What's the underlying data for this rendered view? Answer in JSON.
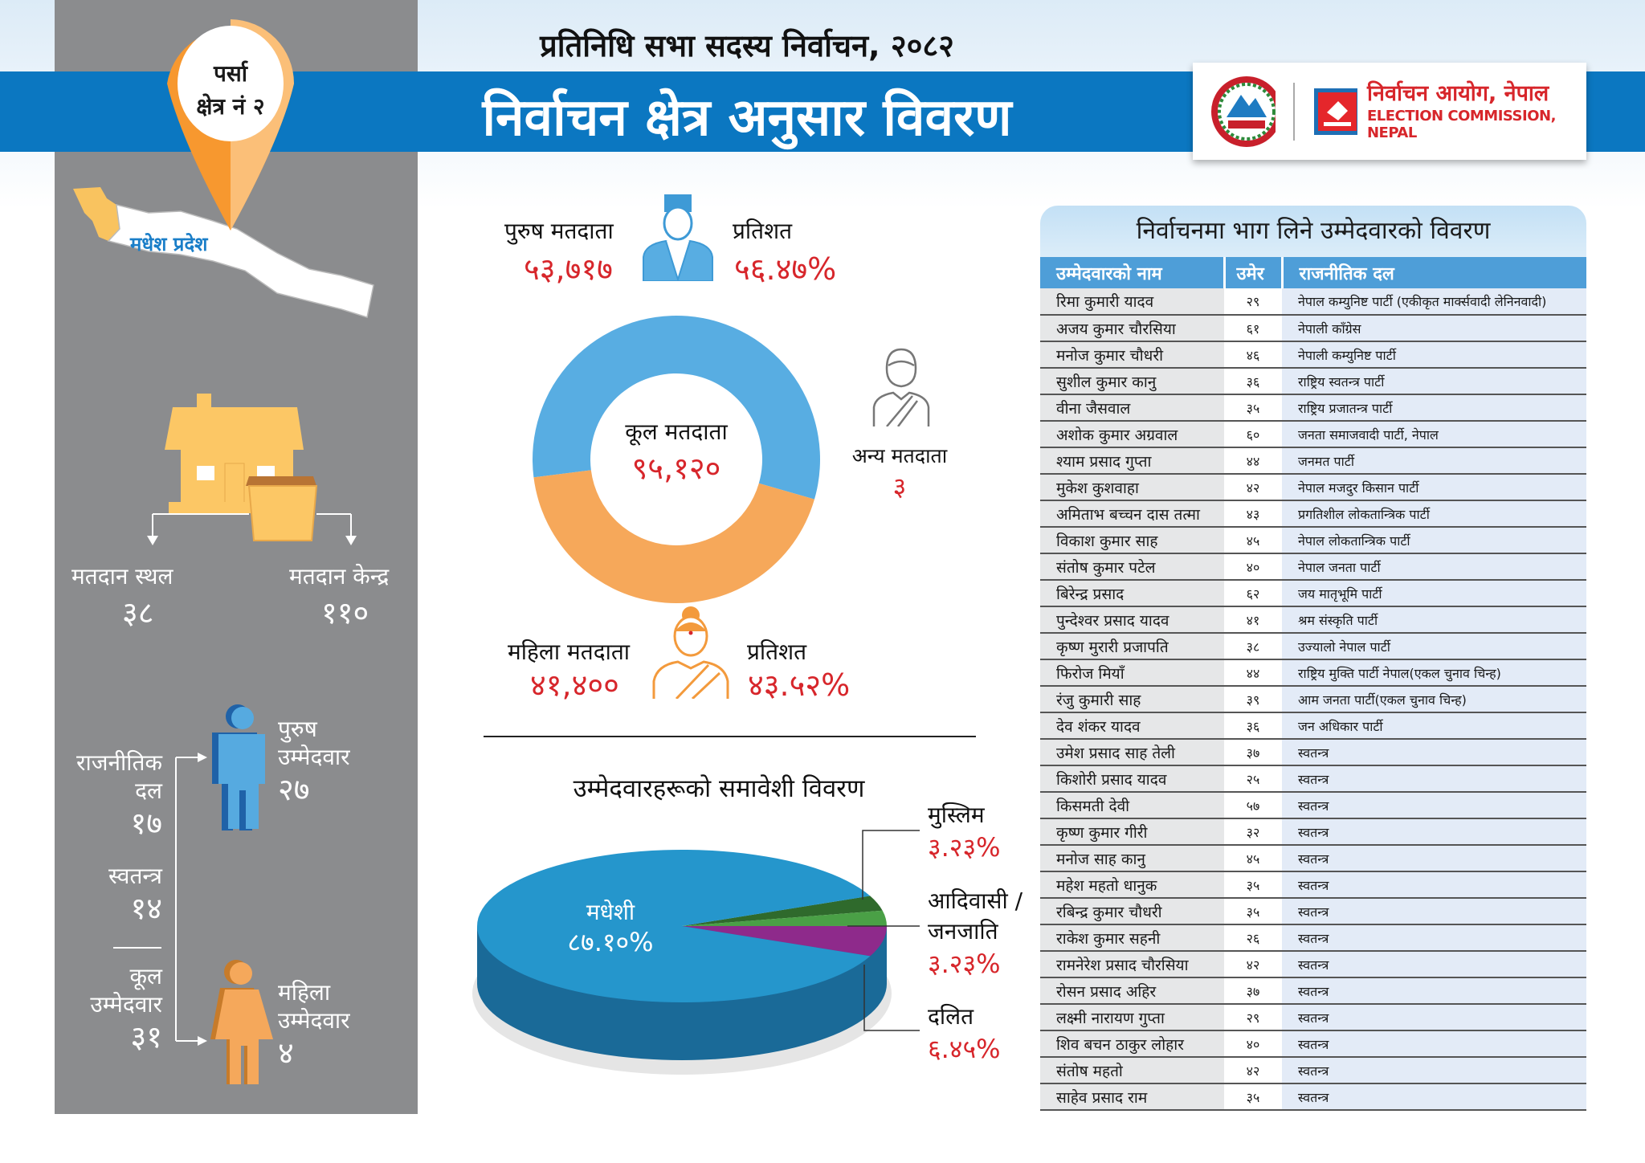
{
  "header": {
    "subtitle": "प्रतिनिधि सभा सदस्य निर्वाचन, २०८२",
    "title": "निर्वाचन क्षेत्र अनुसार विवरण",
    "org_np": "निर्वाचन आयोग, नेपाल",
    "org_en": "ELECTION COMMISSION, NEPAL"
  },
  "constituency": {
    "district": "पर्सा",
    "number": "क्षेत्र नं २",
    "province": "मधेश प्रदेश"
  },
  "polling": {
    "station_label": "मतदान स्थल",
    "station_value": "३८",
    "center_label": "मतदान केन्द्र",
    "center_value": "११०"
  },
  "candidates_summary": {
    "party_label_1": "राजनीतिक",
    "party_label_2": "दल",
    "party_value": "१७",
    "independent_label": "स्वतन्त्र",
    "independent_value": "१४",
    "total_label_1": "कूल",
    "total_label_2": "उम्मेदवार",
    "total_value": "३१",
    "male_label_1": "पुरुष",
    "male_label_2": "उम्मेदवार",
    "male_value": "२७",
    "female_label_1": "महिला",
    "female_label_2": "उम्मेदवार",
    "female_value": "४"
  },
  "voters": {
    "male_label": "पुरुष मतदाता",
    "male_value": "५३,७१७",
    "male_pct_label": "प्रतिशत",
    "male_pct": "५६.४७%",
    "female_label": "महिला मतदाता",
    "female_value": "४१,४००",
    "female_pct_label": "प्रतिशत",
    "female_pct": "४३.५२%",
    "total_label": "कूल मतदाता",
    "total_value": "९५,१२०",
    "other_label": "अन्य मतदाता",
    "other_value": "३"
  },
  "chart_data": [
    {
      "type": "pie",
      "variant": "donut",
      "series": [
        {
          "name": "पुरुष मतदाता",
          "value": 56.47,
          "color": "#58ade2"
        },
        {
          "name": "महिला मतदाता",
          "value": 43.52,
          "color": "#f6a85a"
        }
      ]
    },
    {
      "type": "pie",
      "variant": "3d",
      "title": "उम्मेदवारहरूको समावेशी विवरण",
      "series": [
        {
          "name": "मधेशी",
          "label": "८७.१०%",
          "value": 87.1,
          "color": "#2596cc"
        },
        {
          "name": "मुस्लिम",
          "label": "३.२३%",
          "value": 3.23,
          "color": "#2f6a2c"
        },
        {
          "name": "आदिवासी / जनजाति",
          "label": "३.२३%",
          "value": 3.23,
          "color": "#4aa046"
        },
        {
          "name": "दलित",
          "label": "६.४५%",
          "value": 6.45,
          "color": "#8e2a8b"
        }
      ]
    }
  ],
  "table": {
    "title": "निर्वाचनमा भाग लिने उम्मेदवारको विवरण",
    "headers": [
      "उम्मेदवारको नाम",
      "उमेर",
      "राजनीतिक दल"
    ],
    "rows": [
      [
        "रिमा कुमारी यादव",
        "२९",
        "नेपाल कम्युनिष्ट पार्टी (एकीकृत मार्क्सवादी लेनिनवादी)"
      ],
      [
        "अजय कुमार चौरसिया",
        "६१",
        "नेपाली काँग्रेस"
      ],
      [
        "मनोज कुमार चौधरी",
        "४६",
        "नेपाली कम्युनिष्ट पार्टी"
      ],
      [
        "सुशील कुमार कानु",
        "३६",
        "राष्ट्रिय स्वतन्त्र पार्टी"
      ],
      [
        "वीना जैसवाल",
        "३५",
        "राष्ट्रिय प्रजातन्त्र पार्टी"
      ],
      [
        "अशोक कुमार अग्रवाल",
        "६०",
        "जनता समाजवादी पार्टी, नेपाल"
      ],
      [
        "श्याम प्रसाद गुप्ता",
        "४४",
        "जनमत पार्टी"
      ],
      [
        "मुकेश कुशवाहा",
        "४२",
        "नेपाल मजदुर किसान पार्टी"
      ],
      [
        "अमिताभ बच्चन दास तत्मा",
        "४३",
        "प्रगतिशील लोकतान्त्रिक पार्टी"
      ],
      [
        "विकाश कुमार साह",
        "४५",
        "नेपाल लोकतान्त्रिक पार्टी"
      ],
      [
        "संतोष कुमार पटेल",
        "४०",
        "नेपाल जनता पार्टी"
      ],
      [
        "बिरेन्द्र प्रसाद",
        "६२",
        "जय मातृभूमि पार्टी"
      ],
      [
        "पुन्देश्वर प्रसाद यादव",
        "४१",
        "श्रम संस्कृति पार्टी"
      ],
      [
        "कृष्ण मुरारी प्रजापति",
        "३८",
        "उज्यालो नेपाल पार्टी"
      ],
      [
        "फिरोज मियाँ",
        "४४",
        "राष्ट्रिय मुक्ति पार्टी नेपाल(एकल चुनाव चिन्ह)"
      ],
      [
        "रंजु कुमारी साह",
        "३९",
        "आम जनता पार्टी(एकल चुनाव चिन्ह)"
      ],
      [
        "देव शंकर यादव",
        "३६",
        "जन अधिकार पार्टी"
      ],
      [
        "उमेश प्रसाद साह तेली",
        "३७",
        "स्वतन्त्र"
      ],
      [
        "किशोरी प्रसाद यादव",
        "२५",
        "स्वतन्त्र"
      ],
      [
        "किसमती देवी",
        "५७",
        "स्वतन्त्र"
      ],
      [
        "कृष्ण कुमार गीरी",
        "३२",
        "स्वतन्त्र"
      ],
      [
        "मनोज साह कानु",
        "४५",
        "स्वतन्त्र"
      ],
      [
        "महेश महतो धानुक",
        "३५",
        "स्वतन्त्र"
      ],
      [
        "रबिन्द्र कुमार चौधरी",
        "३५",
        "स्वतन्त्र"
      ],
      [
        "राकेश कुमार सहनी",
        "२६",
        "स्वतन्त्र"
      ],
      [
        "रामनेरेश प्रसाद चौरसिया",
        "४२",
        "स्वतन्त्र"
      ],
      [
        "रोसन प्रसाद अहिर",
        "३७",
        "स्वतन्त्र"
      ],
      [
        "लक्ष्मी नारायण गुप्ता",
        "२९",
        "स्वतन्त्र"
      ],
      [
        "शिव बचन ठाकुर लोहार",
        "४०",
        "स्वतन्त्र"
      ],
      [
        "संतोष महतो",
        "४२",
        "स्वतन्त्र"
      ],
      [
        "साहेव प्रसाद राम",
        "३५",
        "स्वतन्त्र"
      ]
    ]
  }
}
